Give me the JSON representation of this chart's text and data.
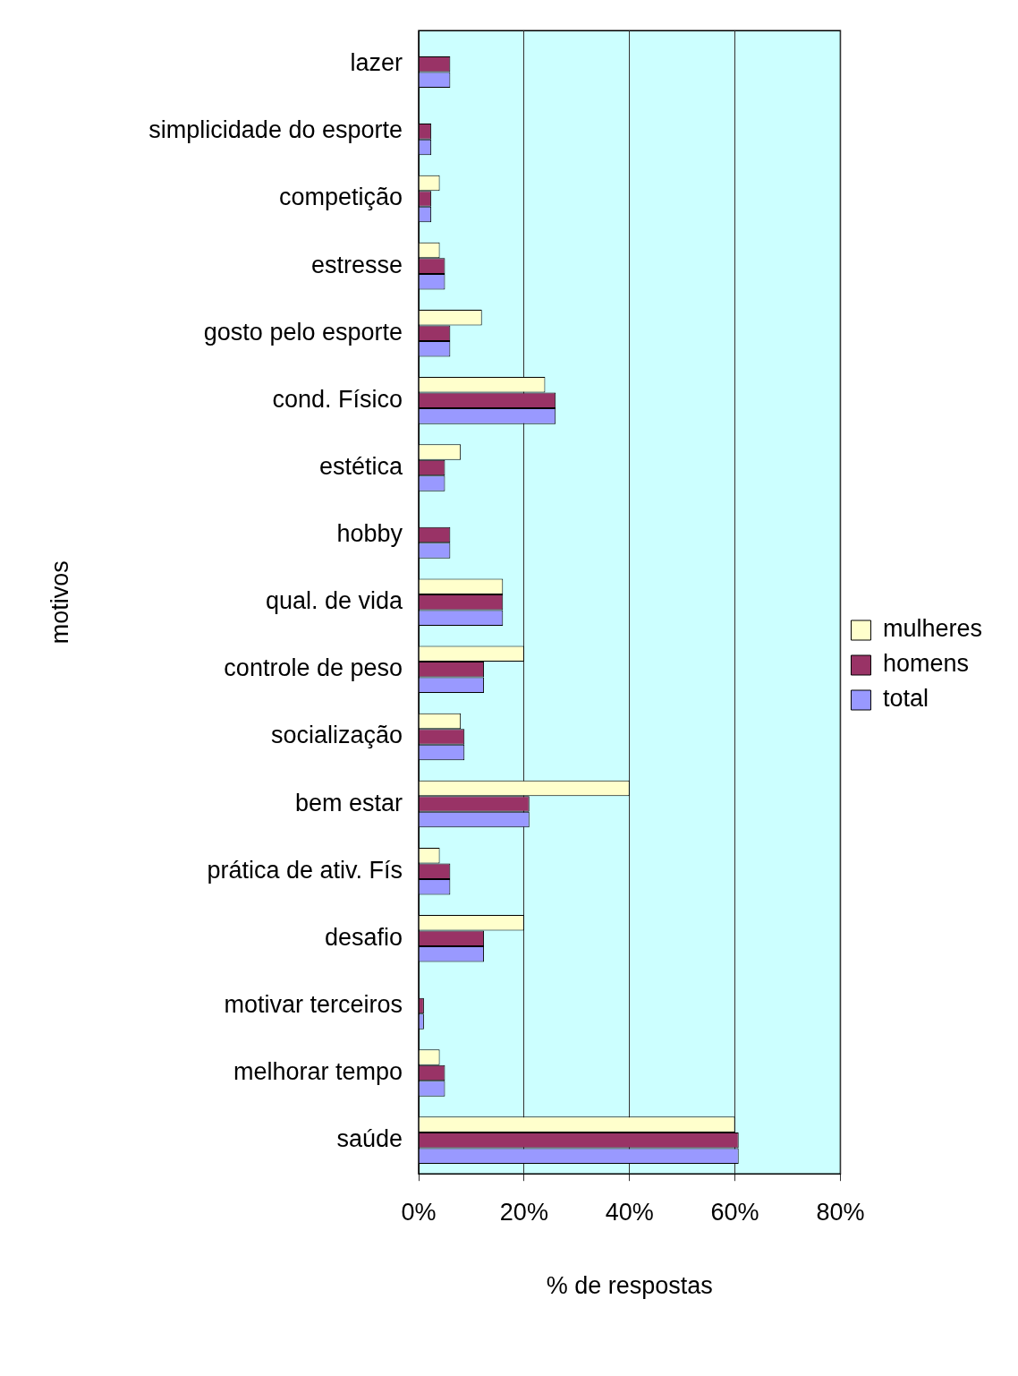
{
  "chart_data": {
    "type": "bar",
    "orientation": "horizontal",
    "xlabel": "% de respostas",
    "ylabel": "motivos",
    "categories": [
      "lazer",
      "simplicidade do esporte",
      "competição",
      "estresse",
      "gosto pelo esporte",
      "cond. Físico",
      "estética",
      "hobby",
      "qual. de vida",
      "controle de peso",
      "socialização",
      "bem estar",
      "prática de ativ. Fís",
      "desafio",
      "motivar terceiros",
      "melhorar tempo",
      "saúde"
    ],
    "series": [
      {
        "name": "mulheres",
        "color": "#ffffcc",
        "values": [
          0,
          0,
          4,
          4,
          12,
          24,
          8,
          0,
          16,
          20,
          8,
          40,
          4,
          20,
          0,
          4,
          60
        ]
      },
      {
        "name": "homens",
        "color": "#993366",
        "values": [
          6,
          2.4,
          2.4,
          5,
          6,
          26,
          5,
          6,
          16,
          12.4,
          8.7,
          21,
          6,
          12.4,
          1,
          5,
          60.7
        ]
      },
      {
        "name": "total",
        "color": "#9999ff",
        "values": [
          6,
          2.4,
          2.4,
          5,
          6,
          26,
          5,
          6,
          16,
          12.4,
          8.7,
          21,
          6,
          12.4,
          1,
          5,
          60.7
        ]
      }
    ],
    "xlim": [
      0,
      80
    ],
    "xticks": [
      {
        "value": 0,
        "label": "0%"
      },
      {
        "value": 20,
        "label": "20%"
      },
      {
        "value": 40,
        "label": "40%"
      },
      {
        "value": 60,
        "label": "60%"
      },
      {
        "value": 80,
        "label": "80%"
      }
    ],
    "grid": "x",
    "legend": "right"
  }
}
